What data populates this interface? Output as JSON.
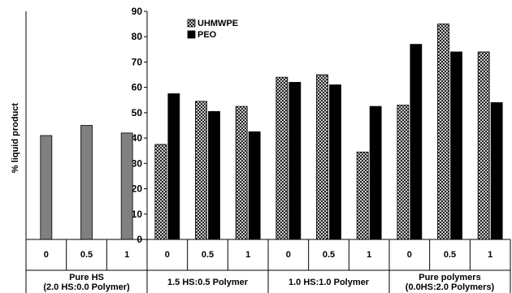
{
  "chart_data": {
    "type": "bar",
    "title": "",
    "ylabel": "% liquid product",
    "ylim": [
      0,
      90
    ],
    "yticks": [
      "0",
      "10",
      "20",
      "30",
      "40",
      "50",
      "60",
      "70",
      "80",
      "90"
    ],
    "grid": false,
    "legend_position": "top-left inside plot",
    "categories": [
      "0",
      "0.5",
      "1",
      "0",
      "0.5",
      "1",
      "0",
      "0.5",
      "1",
      "0",
      "0.5",
      "1"
    ],
    "groups": [
      {
        "label": [
          "Pure HS",
          "(2.0 HS:0.0 Polymer)"
        ],
        "categories": [
          "0",
          "0.5",
          "1"
        ]
      },
      {
        "label": [
          "1.5 HS:0.5 Polymer"
        ],
        "categories": [
          "0",
          "0.5",
          "1"
        ]
      },
      {
        "label": [
          "1.0 HS:1.0 Polymer"
        ],
        "categories": [
          "0",
          "0.5",
          "1"
        ]
      },
      {
        "label": [
          "Pure polymers",
          "(0.0HS:2.0 Polymers)"
        ],
        "categories": [
          "0",
          "0.5",
          "1"
        ]
      }
    ],
    "series": [
      {
        "name": "",
        "color": "#808080",
        "values": [
          41,
          45,
          42,
          null,
          null,
          null,
          null,
          null,
          null,
          null,
          null,
          null
        ]
      },
      {
        "name": "UHMWPE",
        "pattern": "crosshatch",
        "values": [
          null,
          null,
          null,
          37.5,
          54.5,
          52.5,
          64,
          65,
          34.5,
          53,
          85,
          74
        ]
      },
      {
        "name": "PEO",
        "color": "#000000",
        "values": [
          null,
          null,
          null,
          57.5,
          50.5,
          42.5,
          62,
          61,
          52.5,
          77,
          74,
          54
        ]
      }
    ]
  }
}
